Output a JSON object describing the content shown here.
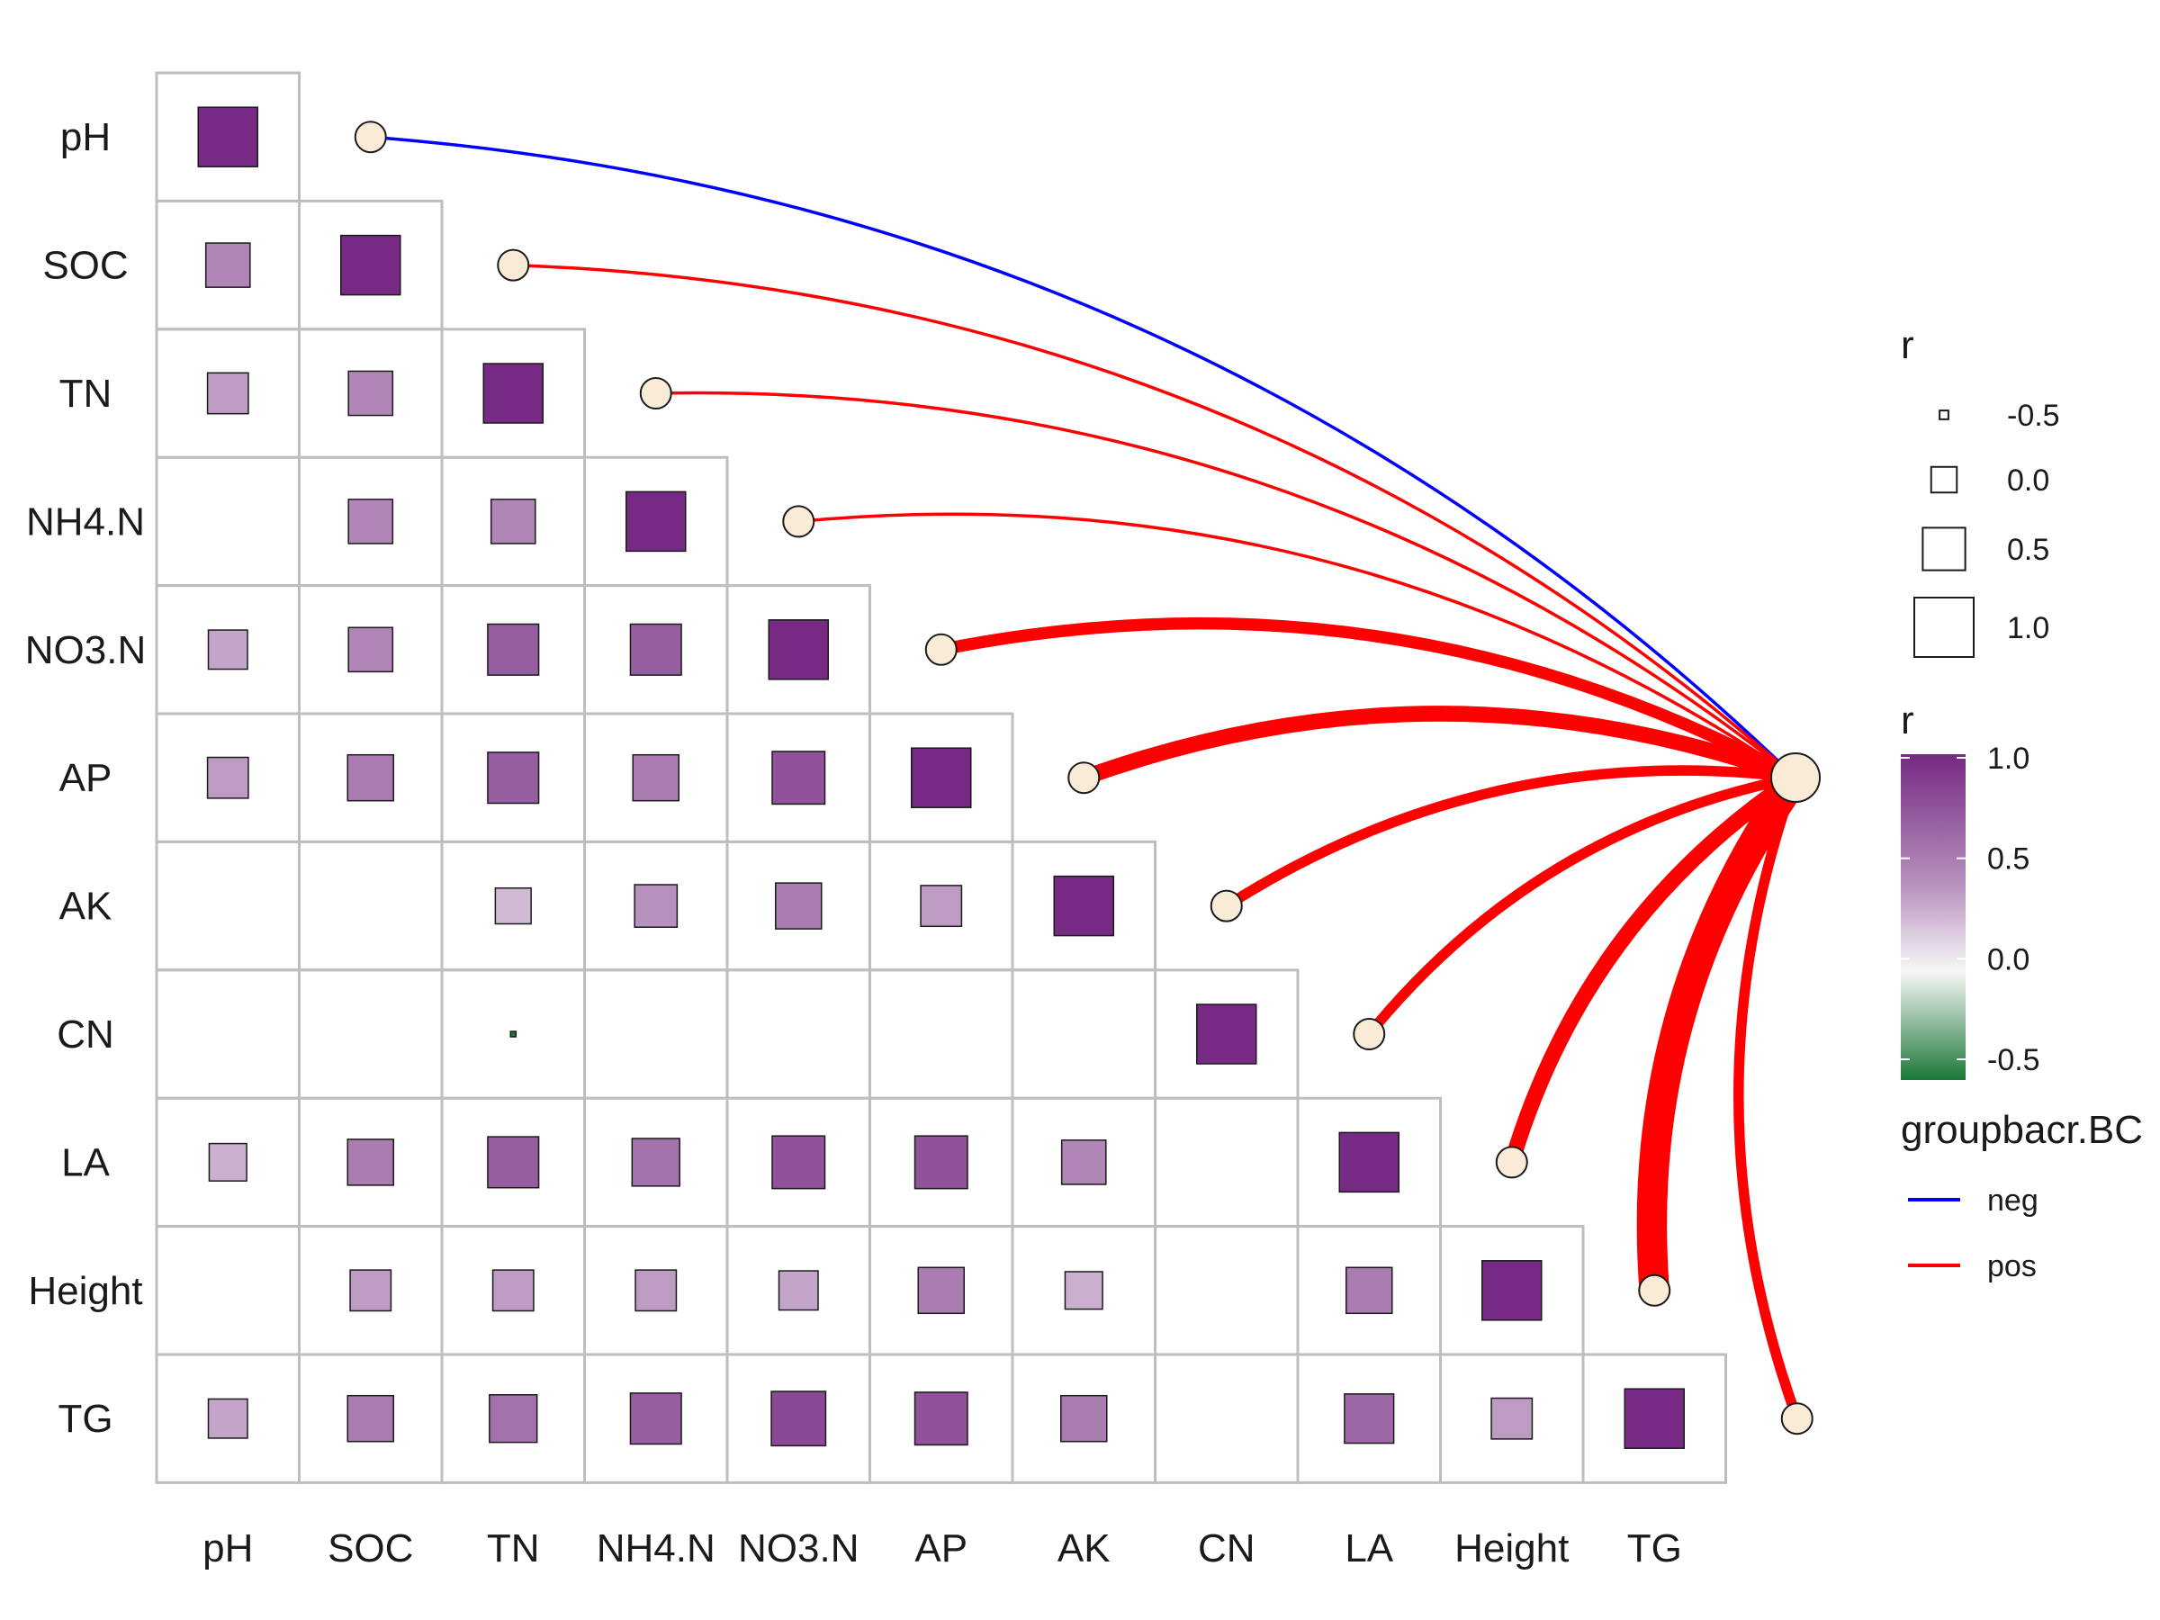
{
  "chart_data": {
    "type": "heatmap",
    "variables": [
      "pH",
      "SOC",
      "TN",
      "NH4.N",
      "NO3.N",
      "AP",
      "AK",
      "CN",
      "LA",
      "Height",
      "TG"
    ],
    "correlation_matrix": [
      [
        1.0,
        null,
        null,
        null,
        null,
        null,
        null,
        null,
        null,
        null,
        null
      ],
      [
        0.55,
        1.0,
        null,
        null,
        null,
        null,
        null,
        null,
        null,
        null,
        null
      ],
      [
        0.45,
        0.55,
        1.0,
        null,
        null,
        null,
        null,
        null,
        null,
        null,
        null
      ],
      [
        null,
        0.55,
        0.55,
        1.0,
        null,
        null,
        null,
        null,
        null,
        null,
        null
      ],
      [
        0.4,
        0.55,
        0.75,
        0.75,
        1.0,
        null,
        null,
        null,
        null,
        null,
        null
      ],
      [
        0.45,
        0.6,
        0.75,
        0.6,
        0.8,
        1.0,
        null,
        null,
        null,
        null,
        null
      ],
      [
        null,
        null,
        0.3,
        0.5,
        0.6,
        0.45,
        1.0,
        null,
        null,
        null,
        null
      ],
      [
        null,
        null,
        -0.6,
        null,
        null,
        null,
        null,
        1.0,
        null,
        null,
        null
      ],
      [
        0.35,
        0.6,
        0.75,
        0.65,
        0.8,
        0.8,
        0.55,
        null,
        1.0,
        null,
        null
      ],
      [
        null,
        0.45,
        0.45,
        0.45,
        0.4,
        0.6,
        0.35,
        null,
        0.6,
        1.0,
        null
      ],
      [
        0.4,
        0.6,
        0.65,
        0.75,
        0.85,
        0.8,
        0.6,
        null,
        0.7,
        0.45,
        1.0
      ]
    ],
    "links": [
      {
        "variable": "pH",
        "group": "neg",
        "strength": 0.1
      },
      {
        "variable": "SOC",
        "group": "pos",
        "strength": 0.1
      },
      {
        "variable": "TN",
        "group": "pos",
        "strength": 0.1
      },
      {
        "variable": "NH4.N",
        "group": "pos",
        "strength": 0.1
      },
      {
        "variable": "NO3.N",
        "group": "pos",
        "strength": 0.6
      },
      {
        "variable": "AP",
        "group": "pos",
        "strength": 0.8
      },
      {
        "variable": "AK",
        "group": "pos",
        "strength": 0.5
      },
      {
        "variable": "CN",
        "group": "pos",
        "strength": 0.5
      },
      {
        "variable": "LA",
        "group": "pos",
        "strength": 0.8
      },
      {
        "variable": "Height",
        "group": "pos",
        "strength": 1.6
      },
      {
        "variable": "TG",
        "group": "pos",
        "strength": 0.5
      }
    ],
    "hub_name": "",
    "size_legend": {
      "title": "r",
      "values": [
        -0.5,
        0.0,
        0.5,
        1.0
      ],
      "labels": [
        "-0.5",
        "0.0",
        "0.5",
        "1.0"
      ]
    },
    "color_legend": {
      "title": "r",
      "range": [
        -0.5,
        1.0
      ],
      "labels": [
        "1.0",
        "0.5",
        "0.0",
        "-0.5"
      ],
      "colors": [
        "#1b7837",
        "#f7f7f7",
        "#762a83"
      ]
    },
    "group_legend": {
      "title": "groupbacr.BC",
      "items": [
        {
          "label": "neg",
          "color": "#0000ff"
        },
        {
          "label": "pos",
          "color": "#ff0000"
        }
      ]
    },
    "colors": {
      "grid": "#bebebe",
      "node_fill": "#faebd7",
      "neg": "#0000ff",
      "pos": "#ff0000",
      "low": "#1b7837",
      "mid": "#f7f7f7",
      "high": "#762a83"
    }
  }
}
